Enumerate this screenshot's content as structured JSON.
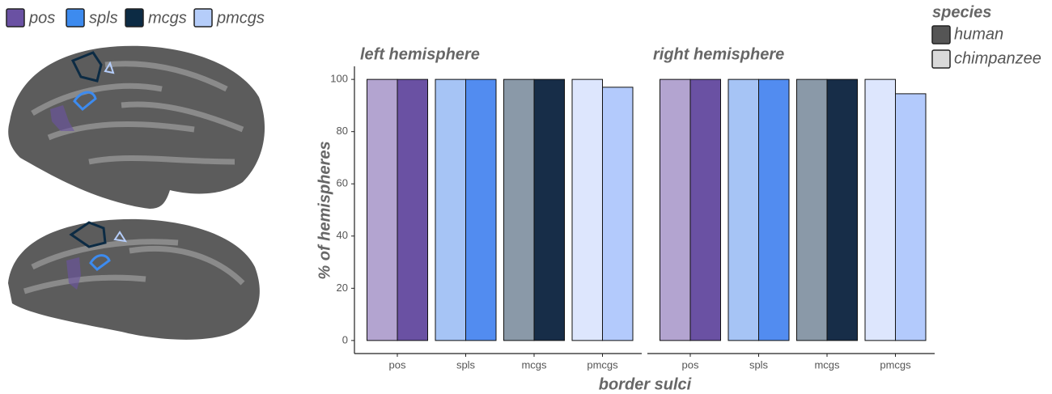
{
  "chart_data": {
    "type": "bar",
    "x_label": "border sulci",
    "y_label": "% of hemispheres",
    "categories": [
      "pos",
      "spls",
      "mcgs",
      "pmcgs"
    ],
    "category_colors": [
      "#6a51a3",
      "#3d8bef",
      "#0c2b44",
      "#b5cdfa"
    ],
    "panels": [
      {
        "title": "left hemisphere"
      },
      {
        "title": "right hemisphere"
      }
    ],
    "legend_title": "species",
    "series": [
      {
        "name": "human",
        "legend_color": "#555555",
        "colors": [
          "#6a51a3",
          "#528cf0",
          "#172d48",
          "#b3cafc"
        ],
        "values": [
          [
            100,
            100,
            100,
            97
          ],
          [
            100,
            100,
            100,
            94.5
          ]
        ]
      },
      {
        "name": "chimpanzee",
        "legend_color": "#d9d9d9",
        "colors": [
          "#b3a4d0",
          "#a6c4f5",
          "#8a99a8",
          "#dde6fd"
        ],
        "values": [
          [
            100,
            100,
            100,
            100
          ],
          [
            100,
            100,
            100,
            100
          ]
        ]
      }
    ],
    "ylim": [
      -5,
      105
    ],
    "yticks": [
      0,
      20,
      40,
      60,
      80,
      100
    ]
  }
}
